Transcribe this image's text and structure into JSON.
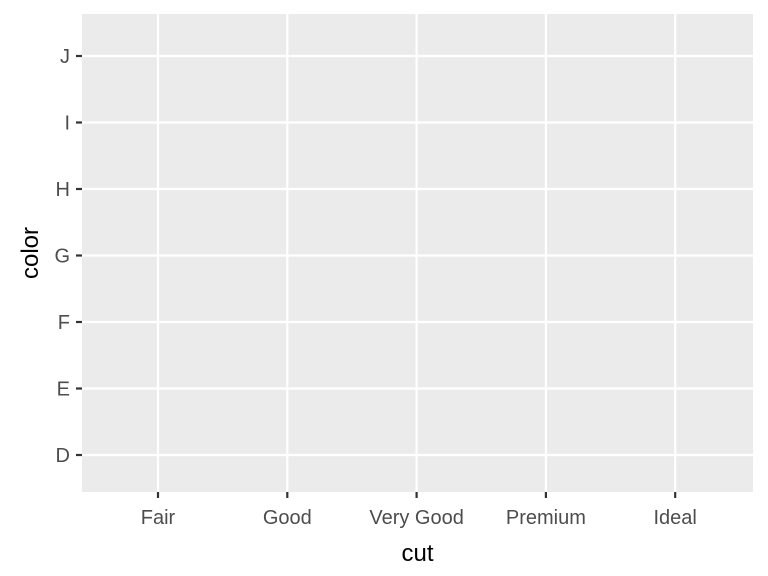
{
  "chart_data": {
    "type": "scatter",
    "xlabel": "cut",
    "ylabel": "color",
    "categories_x": [
      "Fair",
      "Good",
      "Very Good",
      "Premium",
      "Ideal"
    ],
    "categories_y": [
      "D",
      "E",
      "F",
      "G",
      "H",
      "I",
      "J"
    ],
    "points": [],
    "grid": true,
    "colors": {
      "panel_background": "#ebebeb",
      "grid_line": "#ffffff",
      "tick_label": "#4d4d4d",
      "tick_mark": "#333333",
      "axis_title": "#000000"
    }
  }
}
